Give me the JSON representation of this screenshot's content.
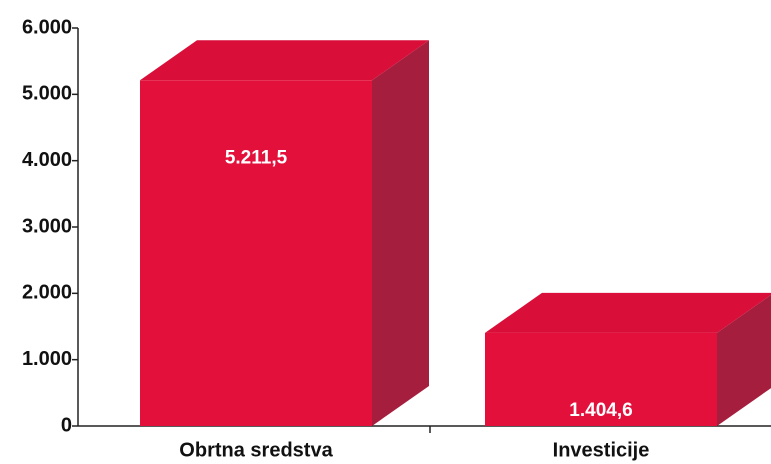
{
  "chart_data": {
    "type": "bar3d",
    "categories": [
      "Obrtna sredstva",
      "Investicije"
    ],
    "values": [
      5211.5,
      1404.6
    ],
    "value_labels": [
      "5.211,5",
      "1.404,6"
    ],
    "color": "#e3103c",
    "ylim": [
      0,
      6000
    ],
    "yticks": [
      0,
      {
        "value": 1000,
        "label": "1.000"
      },
      {
        "value": 2000,
        "label": "2.000"
      },
      {
        "value": 3000,
        "label": "3.000"
      },
      {
        "value": 4000,
        "label": "4.000"
      },
      {
        "value": 5000,
        "label": "5.000"
      },
      {
        "value": 6000,
        "label": "6.000"
      }
    ]
  }
}
